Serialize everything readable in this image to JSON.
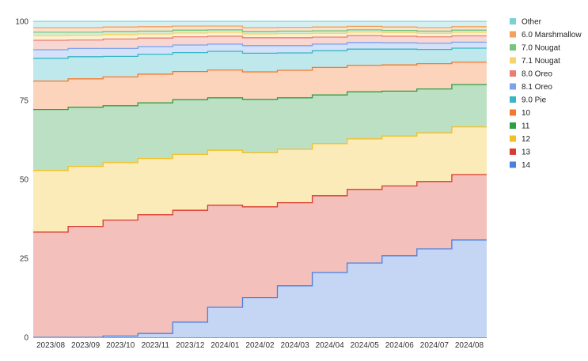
{
  "chart_data": {
    "type": "area",
    "stacked": true,
    "step": true,
    "title": "",
    "xlabel": "",
    "ylabel": "",
    "ylim": [
      0,
      100
    ],
    "yticks": [
      0,
      25,
      50,
      75,
      100
    ],
    "grid": true,
    "legend_position": "right",
    "categories": [
      "2023/08",
      "2023/09",
      "2023/10",
      "2023/11",
      "2023/12",
      "2024/01",
      "2024/02",
      "2024/03",
      "2024/04",
      "2024/05",
      "2024/06",
      "2024/07",
      "2024/08"
    ],
    "series": [
      {
        "name": "14",
        "color": "#4a7fe0",
        "values": [
          0,
          0,
          0.4,
          1.2,
          4.8,
          9.5,
          12.6,
          16.3,
          20.5,
          23.5,
          25.8,
          28.0,
          30.8
        ]
      },
      {
        "name": "13",
        "color": "#d93b2e",
        "values": [
          33.3,
          35.1,
          36.7,
          37.6,
          35.4,
          32.3,
          28.7,
          26.3,
          24.3,
          23.3,
          22.1,
          21.3,
          20.7
        ]
      },
      {
        "name": "12",
        "color": "#f2bf24",
        "values": [
          19.5,
          19.0,
          18.2,
          17.8,
          17.7,
          17.4,
          17.1,
          16.9,
          16.5,
          16.0,
          15.8,
          15.4,
          15.1
        ]
      },
      {
        "name": "11",
        "color": "#2e9e45",
        "values": [
          19.3,
          18.7,
          18.0,
          17.6,
          17.3,
          16.6,
          16.9,
          16.3,
          15.4,
          14.9,
          14.2,
          13.9,
          13.4
        ]
      },
      {
        "name": "10",
        "color": "#f5782a",
        "values": [
          9.0,
          9.0,
          9.1,
          9.1,
          8.9,
          8.8,
          8.7,
          8.7,
          8.7,
          8.4,
          8.3,
          8.0,
          7.1
        ]
      },
      {
        "name": "9.0 Pie",
        "color": "#38b6c4",
        "values": [
          7.2,
          7.0,
          6.5,
          6.3,
          6.0,
          5.9,
          5.9,
          5.5,
          5.3,
          5.1,
          5.0,
          4.5,
          4.4
        ]
      },
      {
        "name": "8.1 Oreo",
        "color": "#7aa3ed",
        "values": [
          2.7,
          2.6,
          2.5,
          2.4,
          2.4,
          2.3,
          2.4,
          2.3,
          2.1,
          2.1,
          2.0,
          2.0,
          1.9
        ]
      },
      {
        "name": "8.0 Oreo",
        "color": "#e87e72",
        "values": [
          3.0,
          2.7,
          3.0,
          2.7,
          2.6,
          2.5,
          2.5,
          2.5,
          2.2,
          2.2,
          2.1,
          2.0,
          2.0
        ]
      },
      {
        "name": "7.1 Nougat",
        "color": "#f6d46a",
        "values": [
          1.5,
          1.5,
          1.4,
          1.3,
          1.2,
          1.2,
          1.2,
          1.3,
          1.2,
          1.1,
          1.1,
          1.1,
          1.1
        ]
      },
      {
        "name": "7.0 Nougat",
        "color": "#76c480",
        "values": [
          1.1,
          1.0,
          1.0,
          0.9,
          0.9,
          0.8,
          0.8,
          0.8,
          0.8,
          0.7,
          0.7,
          0.7,
          0.7
        ]
      },
      {
        "name": "6.0 Marshmallow",
        "color": "#f5a05e",
        "values": [
          1.4,
          1.4,
          1.4,
          1.4,
          1.3,
          1.2,
          1.2,
          1.2,
          1.2,
          1.1,
          1.1,
          1.1,
          1.1
        ]
      },
      {
        "name": "Other",
        "color": "#7bcfd6",
        "values": [
          2.0,
          2.0,
          1.8,
          1.7,
          1.5,
          1.5,
          2.0,
          1.9,
          1.8,
          1.6,
          1.8,
          2.0,
          1.7
        ]
      }
    ]
  }
}
